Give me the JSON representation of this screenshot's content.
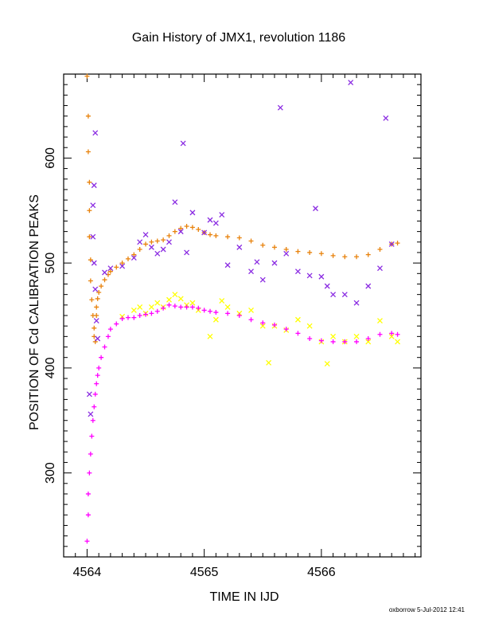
{
  "chart_data": {
    "type": "scatter",
    "title": "Gain History of JMX1, revolution 1186",
    "xlabel": "TIME IN IJD",
    "ylabel": "POSITION OF Cd CALIBRATION PEAKS",
    "xlim": [
      4563.8,
      4566.85
    ],
    "ylim": [
      220,
      680
    ],
    "xticks": [
      4564,
      4565,
      4566
    ],
    "yticks": [
      300,
      400,
      500,
      600
    ],
    "grid": false,
    "legend": "none",
    "credit": "oxborrow  5-Jul-2012 12:41",
    "series": [
      {
        "marker": "plus",
        "color": "#e8820c",
        "values": [
          [
            4564.0,
            678
          ],
          [
            4564.01,
            640
          ],
          [
            4564.01,
            606
          ],
          [
            4564.02,
            577
          ],
          [
            4564.02,
            550
          ],
          [
            4564.02,
            525
          ],
          [
            4564.03,
            503
          ],
          [
            4564.03,
            483
          ],
          [
            4564.04,
            465
          ],
          [
            4564.05,
            450
          ],
          [
            4564.06,
            438
          ],
          [
            4564.06,
            430
          ],
          [
            4564.07,
            425
          ],
          [
            4564.08,
            450
          ],
          [
            4564.08,
            458
          ],
          [
            4564.09,
            466
          ],
          [
            4564.1,
            472
          ],
          [
            4564.12,
            478
          ],
          [
            4564.15,
            484
          ],
          [
            4564.18,
            489
          ],
          [
            4564.2,
            492
          ],
          [
            4564.25,
            496
          ],
          [
            4564.3,
            500
          ],
          [
            4564.35,
            504
          ],
          [
            4564.4,
            508
          ],
          [
            4564.45,
            513
          ],
          [
            4564.5,
            518
          ],
          [
            4564.55,
            520
          ],
          [
            4564.6,
            521
          ],
          [
            4564.65,
            522
          ],
          [
            4564.7,
            526
          ],
          [
            4564.75,
            530
          ],
          [
            4564.8,
            533
          ],
          [
            4564.85,
            535
          ],
          [
            4564.9,
            534
          ],
          [
            4564.95,
            532
          ],
          [
            4565.0,
            529
          ],
          [
            4565.05,
            527
          ],
          [
            4565.1,
            526
          ],
          [
            4565.2,
            525
          ],
          [
            4565.3,
            524
          ],
          [
            4565.4,
            521
          ],
          [
            4565.5,
            517
          ],
          [
            4565.6,
            515
          ],
          [
            4565.7,
            513
          ],
          [
            4565.8,
            511
          ],
          [
            4565.9,
            510
          ],
          [
            4566.0,
            509
          ],
          [
            4566.1,
            507
          ],
          [
            4566.2,
            506
          ],
          [
            4566.3,
            506
          ],
          [
            4566.4,
            508
          ],
          [
            4566.5,
            513
          ],
          [
            4566.6,
            518
          ],
          [
            4566.65,
            519
          ]
        ]
      },
      {
        "marker": "cross",
        "color": "#8a2be2",
        "values": [
          [
            4564.07,
            624
          ],
          [
            4564.06,
            574
          ],
          [
            4564.05,
            555
          ],
          [
            4564.05,
            525
          ],
          [
            4564.06,
            500
          ],
          [
            4564.07,
            475
          ],
          [
            4564.08,
            445
          ],
          [
            4564.09,
            428
          ],
          [
            4564.02,
            375
          ],
          [
            4564.03,
            356
          ],
          [
            4564.15,
            491
          ],
          [
            4564.2,
            495
          ],
          [
            4564.3,
            497
          ],
          [
            4564.4,
            505
          ],
          [
            4564.45,
            520
          ],
          [
            4564.5,
            527
          ],
          [
            4564.55,
            515
          ],
          [
            4564.6,
            509
          ],
          [
            4564.65,
            513
          ],
          [
            4564.7,
            520
          ],
          [
            4564.75,
            558
          ],
          [
            4564.8,
            530
          ],
          [
            4564.82,
            614
          ],
          [
            4564.85,
            510
          ],
          [
            4564.9,
            548
          ],
          [
            4565.0,
            529
          ],
          [
            4565.05,
            541
          ],
          [
            4565.1,
            538
          ],
          [
            4565.15,
            546
          ],
          [
            4565.2,
            498
          ],
          [
            4565.3,
            515
          ],
          [
            4565.4,
            492
          ],
          [
            4565.45,
            501
          ],
          [
            4565.5,
            484
          ],
          [
            4565.6,
            500
          ],
          [
            4565.65,
            648
          ],
          [
            4565.7,
            509
          ],
          [
            4565.8,
            492
          ],
          [
            4565.9,
            488
          ],
          [
            4565.95,
            552
          ],
          [
            4566.0,
            487
          ],
          [
            4566.05,
            478
          ],
          [
            4566.1,
            470
          ],
          [
            4566.2,
            470
          ],
          [
            4566.25,
            672
          ],
          [
            4566.3,
            462
          ],
          [
            4566.4,
            478
          ],
          [
            4566.5,
            495
          ],
          [
            4566.55,
            638
          ],
          [
            4566.6,
            518
          ]
        ]
      },
      {
        "marker": "cross",
        "color": "#ffff00",
        "values": [
          [
            4564.3,
            449
          ],
          [
            4564.4,
            455
          ],
          [
            4564.45,
            458
          ],
          [
            4564.5,
            452
          ],
          [
            4564.55,
            458
          ],
          [
            4564.6,
            462
          ],
          [
            4564.65,
            458
          ],
          [
            4564.7,
            465
          ],
          [
            4564.75,
            470
          ],
          [
            4564.8,
            466
          ],
          [
            4564.85,
            460
          ],
          [
            4564.9,
            462
          ],
          [
            4564.95,
            455
          ],
          [
            4565.05,
            430
          ],
          [
            4565.1,
            446
          ],
          [
            4565.15,
            464
          ],
          [
            4565.2,
            458
          ],
          [
            4565.3,
            452
          ],
          [
            4565.4,
            455
          ],
          [
            4565.5,
            440
          ],
          [
            4565.55,
            405
          ],
          [
            4565.6,
            440
          ],
          [
            4565.7,
            436
          ],
          [
            4565.8,
            446
          ],
          [
            4565.9,
            440
          ],
          [
            4566.0,
            425
          ],
          [
            4566.05,
            404
          ],
          [
            4566.1,
            430
          ],
          [
            4566.2,
            425
          ],
          [
            4566.3,
            430
          ],
          [
            4566.4,
            425
          ],
          [
            4566.5,
            445
          ],
          [
            4566.6,
            430
          ],
          [
            4566.65,
            425
          ]
        ]
      },
      {
        "marker": "plus",
        "color": "#ff00ff",
        "values": [
          [
            4564.0,
            235
          ],
          [
            4564.01,
            260
          ],
          [
            4564.01,
            280
          ],
          [
            4564.02,
            300
          ],
          [
            4564.03,
            318
          ],
          [
            4564.04,
            335
          ],
          [
            4564.05,
            350
          ],
          [
            4564.06,
            363
          ],
          [
            4564.07,
            375
          ],
          [
            4564.08,
            385
          ],
          [
            4564.09,
            393
          ],
          [
            4564.1,
            400
          ],
          [
            4564.12,
            410
          ],
          [
            4564.15,
            420
          ],
          [
            4564.18,
            430
          ],
          [
            4564.2,
            437
          ],
          [
            4564.25,
            442
          ],
          [
            4564.3,
            447
          ],
          [
            4564.35,
            448
          ],
          [
            4564.4,
            448
          ],
          [
            4564.45,
            450
          ],
          [
            4564.5,
            451
          ],
          [
            4564.55,
            452
          ],
          [
            4564.6,
            454
          ],
          [
            4564.65,
            457
          ],
          [
            4564.7,
            460
          ],
          [
            4564.75,
            459
          ],
          [
            4564.8,
            458
          ],
          [
            4564.85,
            458
          ],
          [
            4564.9,
            458
          ],
          [
            4564.95,
            457
          ],
          [
            4565.0,
            455
          ],
          [
            4565.05,
            454
          ],
          [
            4565.1,
            453
          ],
          [
            4565.2,
            452
          ],
          [
            4565.3,
            450
          ],
          [
            4565.4,
            446
          ],
          [
            4565.5,
            443
          ],
          [
            4565.6,
            441
          ],
          [
            4565.7,
            437
          ],
          [
            4565.8,
            433
          ],
          [
            4565.9,
            428
          ],
          [
            4566.0,
            426
          ],
          [
            4566.1,
            425
          ],
          [
            4566.2,
            425
          ],
          [
            4566.3,
            425
          ],
          [
            4566.4,
            428
          ],
          [
            4566.5,
            432
          ],
          [
            4566.6,
            433
          ],
          [
            4566.65,
            432
          ]
        ]
      }
    ]
  }
}
